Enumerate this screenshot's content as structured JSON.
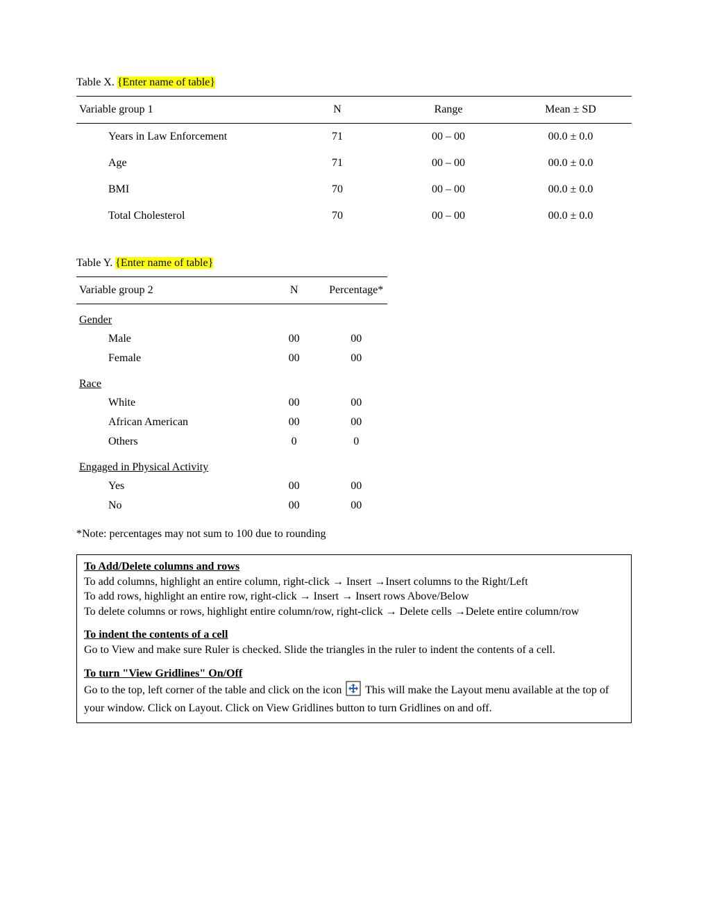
{
  "tableX": {
    "titlePrefix": "Table X.  ",
    "titlePlaceholder": "{Enter name of table}",
    "columns": [
      "Variable group 1",
      "N",
      "Range",
      "Mean ± SD"
    ],
    "rows": [
      {
        "var": "Years in Law Enforcement",
        "n": "71",
        "range": "00 – 00",
        "mean": "00.0 ± 0.0"
      },
      {
        "var": "Age",
        "n": "71",
        "range": "00 – 00",
        "mean": "00.0 ± 0.0"
      },
      {
        "var": "BMI",
        "n": "70",
        "range": "00 – 00",
        "mean": "00.0 ± 0.0"
      },
      {
        "var": "Total Cholesterol",
        "n": "70",
        "range": "00 – 00",
        "mean": "00.0 ± 0.0"
      }
    ]
  },
  "tableY": {
    "titlePrefix": "Table Y.  ",
    "titlePlaceholder": "{Enter name of table}",
    "columns": [
      "Variable group 2",
      "N",
      "Percentage*"
    ],
    "sections": [
      {
        "heading": "Gender ",
        "rows": [
          {
            "var": "Male",
            "n": "00",
            "pct": "00"
          },
          {
            "var": "Female",
            "n": "00",
            "pct": "00"
          }
        ]
      },
      {
        "heading": "Race",
        "rows": [
          {
            "var": "White",
            "n": "00",
            "pct": "00"
          },
          {
            "var": "African American",
            "n": "00",
            "pct": "00"
          },
          {
            "var": "Others",
            "n": "0",
            "pct": "0"
          }
        ]
      },
      {
        "heading": "Engaged in Physical Activity",
        "rows": [
          {
            "var": "Yes",
            "n": "00",
            "pct": "00"
          },
          {
            "var": "No",
            "n": "00",
            "pct": "00"
          }
        ]
      }
    ]
  },
  "footnote": "*Note: percentages may not sum to 100 due to rounding",
  "instructions": {
    "s1h": "To Add/Delete columns and rows",
    "s1l1": "To add columns, highlight an entire column, right-click → Insert →Insert columns to the Right/Left",
    "s1l2": "To add rows, highlight an entire row, right-click → Insert → Insert rows Above/Below",
    "s1l3": "To delete columns or rows, highlight entire column/row, right-click → Delete cells →Delete entire column/row",
    "s2h": "To indent the contents of a cell",
    "s2l1": "Go to View and make sure Ruler is checked. Slide the triangles in the ruler to indent the contents of a cell.",
    "s3h": "To turn \"View Gridlines\" On/Off",
    "s3l1a": "Go to the top, left corner of the table and click on the icon ",
    "s3l1b": " This will make the Layout menu available at the top of your window. Click on Layout. Click on View Gridlines button to turn Gridlines on and off."
  }
}
